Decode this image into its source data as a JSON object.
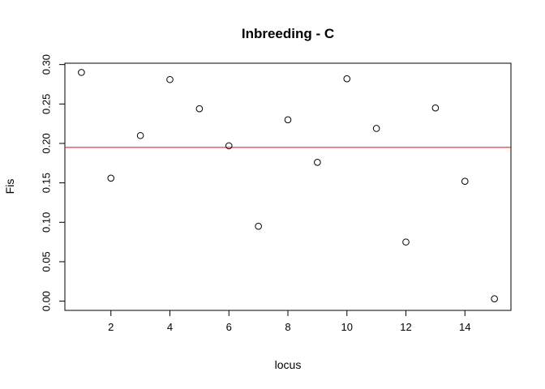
{
  "chart_data": {
    "type": "scatter",
    "title": "Inbreeding - C",
    "xlabel": "locus",
    "ylabel": "Fis",
    "xlim": [
      0.44,
      15.56
    ],
    "ylim": [
      -0.0117,
      0.3017
    ],
    "x_ticks": [
      2,
      4,
      6,
      8,
      10,
      12,
      14
    ],
    "x_tick_labels": [
      "2",
      "4",
      "6",
      "8",
      "10",
      "12",
      "14"
    ],
    "y_ticks": [
      0,
      0.05,
      0.1,
      0.15,
      0.2,
      0.25,
      0.3
    ],
    "y_tick_labels": [
      "0.00",
      "0.05",
      "0.10",
      "0.15",
      "0.20",
      "0.25",
      "0.30"
    ],
    "grid": false,
    "series": [
      {
        "x": [
          1,
          2,
          3,
          4,
          5,
          6,
          7,
          8,
          9,
          10,
          11,
          12,
          13,
          14,
          15
        ],
        "values": [
          0.29,
          0.156,
          0.21,
          0.281,
          0.244,
          0.197,
          0.095,
          0.23,
          0.176,
          0.282,
          0.219,
          0.075,
          0.245,
          0.152,
          0.003
        ],
        "marker": "open-circle",
        "color": "#000000"
      }
    ],
    "reference_line": {
      "orientation": "horizontal",
      "y": 0.195,
      "color": "#ff0000"
    }
  }
}
